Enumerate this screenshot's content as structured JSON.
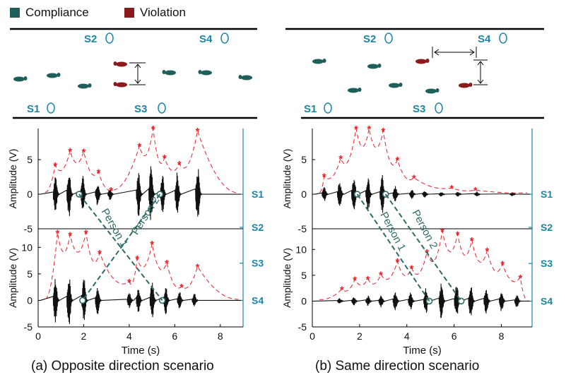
{
  "legend": {
    "compliance": {
      "label": "Compliance",
      "color": "#1f5f5b"
    },
    "violation": {
      "label": "Violation",
      "color": "#8b1a1a"
    }
  },
  "colors": {
    "sensor": "#1a86a6",
    "envelope": "#e8202a",
    "signal": "#111111",
    "track": "#2f6b66"
  },
  "scenarios": [
    {
      "id": "a",
      "caption": "(a) Opposite direction scenario",
      "sensors_top": [
        "S2",
        "S4"
      ],
      "sensors_bottom": [
        "S1",
        "S3"
      ],
      "person_labels": [
        "Person 1",
        "Person 2"
      ]
    },
    {
      "id": "b",
      "caption": "(b) Same direction scenario",
      "sensors_top": [
        "S2",
        "S4"
      ],
      "sensors_bottom": [
        "S1",
        "S3"
      ],
      "person_labels": [
        "Person 1",
        "Person 2"
      ]
    }
  ],
  "chart_data": [
    {
      "type": "line",
      "panel": "a-top",
      "ylabel": "Amplitude (V)",
      "ylim": [
        -5,
        9.5
      ],
      "xlim": [
        0,
        9
      ],
      "yticks": [
        -5,
        0,
        5
      ],
      "right_ticks": [
        "S1",
        "S2"
      ],
      "peaks": [
        {
          "x": 0.75,
          "y": 4.2
        },
        {
          "x": 1.4,
          "y": 6.3
        },
        {
          "x": 2.0,
          "y": 6.2
        },
        {
          "x": 2.65,
          "y": 3.2
        },
        {
          "x": 3.2,
          "y": 0.6
        },
        {
          "x": 4.45,
          "y": 7.0
        },
        {
          "x": 5.05,
          "y": 9.5
        },
        {
          "x": 5.55,
          "y": 5.3
        },
        {
          "x": 6.2,
          "y": 4.4
        },
        {
          "x": 7.0,
          "y": 9.2
        }
      ],
      "bursts": [
        {
          "x": 0.8,
          "a": 2.8
        },
        {
          "x": 1.4,
          "a": 3.5
        },
        {
          "x": 2.0,
          "a": 2.8
        },
        {
          "x": 2.65,
          "a": 1.7
        },
        {
          "x": 3.2,
          "a": 0.9
        },
        {
          "x": 4.45,
          "a": 3.3
        },
        {
          "x": 5.0,
          "a": 4.3
        },
        {
          "x": 5.5,
          "a": 3.0
        },
        {
          "x": 6.15,
          "a": 3.2
        },
        {
          "x": 7.05,
          "a": 4.4
        }
      ],
      "markers": [
        {
          "x": 1.8,
          "y": 0
        },
        {
          "x": 5.35,
          "y": 0
        }
      ]
    },
    {
      "type": "line",
      "panel": "a-bottom",
      "xlabel": "Time (s)",
      "ylabel": "Amplitude (V)",
      "ylim": [
        -5,
        13.5
      ],
      "xlim": [
        0,
        9
      ],
      "yticks": [
        -5,
        0,
        5,
        10
      ],
      "xticks": [
        0,
        2,
        4,
        6,
        8
      ],
      "right_ticks": [
        "S3",
        "S4"
      ],
      "peaks": [
        {
          "x": 0.85,
          "y": 12.8
        },
        {
          "x": 1.4,
          "y": 12.4
        },
        {
          "x": 2.1,
          "y": 12.8
        },
        {
          "x": 2.7,
          "y": 9.0
        },
        {
          "x": 4.0,
          "y": 3.5
        },
        {
          "x": 4.35,
          "y": 7.9
        },
        {
          "x": 5.0,
          "y": 10.7
        },
        {
          "x": 5.65,
          "y": 7.1
        },
        {
          "x": 6.3,
          "y": 2.6
        },
        {
          "x": 7.0,
          "y": 6.4
        }
      ],
      "bursts": [
        {
          "x": 0.8,
          "a": 4.2
        },
        {
          "x": 1.4,
          "a": 5.0
        },
        {
          "x": 2.05,
          "a": 4.5
        },
        {
          "x": 2.65,
          "a": 2.8
        },
        {
          "x": 4.05,
          "a": 1.8
        },
        {
          "x": 4.45,
          "a": 2.7
        },
        {
          "x": 5.05,
          "a": 3.8
        },
        {
          "x": 5.65,
          "a": 2.8
        },
        {
          "x": 6.25,
          "a": 1.8
        },
        {
          "x": 6.9,
          "a": 1.5
        }
      ],
      "markers": [
        {
          "x": 1.95,
          "y": 0
        },
        {
          "x": 5.45,
          "y": 0
        }
      ]
    },
    {
      "type": "line",
      "panel": "b-top",
      "ylabel": "Amplitude (V)",
      "ylim": [
        -5,
        9.5
      ],
      "xlim": [
        0,
        9.3
      ],
      "yticks": [
        -5,
        0,
        5
      ],
      "right_ticks": [
        "S1",
        "S2"
      ],
      "peaks": [
        {
          "x": 0.5,
          "y": 2.6
        },
        {
          "x": 1.2,
          "y": 5.2
        },
        {
          "x": 1.85,
          "y": 9.5
        },
        {
          "x": 2.4,
          "y": 9.5
        },
        {
          "x": 3.0,
          "y": 9.2
        },
        {
          "x": 3.6,
          "y": 5.0
        },
        {
          "x": 4.3,
          "y": 2.4
        },
        {
          "x": 5.9,
          "y": 0.9
        },
        {
          "x": 6.9,
          "y": 0.6
        }
      ],
      "bursts": [
        {
          "x": 0.55,
          "a": 1.1
        },
        {
          "x": 1.2,
          "a": 2.0
        },
        {
          "x": 1.8,
          "a": 2.8
        },
        {
          "x": 2.4,
          "a": 2.6
        },
        {
          "x": 3.0,
          "a": 2.9
        },
        {
          "x": 3.55,
          "a": 1.3
        },
        {
          "x": 4.25,
          "a": 0.8
        },
        {
          "x": 4.8,
          "a": 0.5
        },
        {
          "x": 5.5,
          "a": 0.4
        },
        {
          "x": 6.2,
          "a": 0.4
        },
        {
          "x": 7.0,
          "a": 0.4
        },
        {
          "x": 8.5,
          "a": 0.3
        }
      ],
      "markers": [
        {
          "x": 1.9,
          "y": 0
        },
        {
          "x": 3.1,
          "y": 0
        }
      ]
    },
    {
      "type": "line",
      "panel": "b-bottom",
      "xlabel": "Time (s)",
      "ylabel": "Amplitude (V)",
      "ylim": [
        -5,
        14
      ],
      "xlim": [
        0,
        9.3
      ],
      "yticks": [
        -5,
        0,
        5,
        10
      ],
      "xticks": [
        0,
        2,
        4,
        6,
        8
      ],
      "right_ticks": [
        "S3",
        "S4"
      ],
      "peaks": [
        {
          "x": 1.25,
          "y": 2.3
        },
        {
          "x": 1.8,
          "y": 4.2
        },
        {
          "x": 2.35,
          "y": 4.3
        },
        {
          "x": 2.9,
          "y": 5.2
        },
        {
          "x": 3.6,
          "y": 7.7
        },
        {
          "x": 4.2,
          "y": 6.4
        },
        {
          "x": 4.85,
          "y": 9.5
        },
        {
          "x": 5.5,
          "y": 13.6
        },
        {
          "x": 6.15,
          "y": 13.0
        },
        {
          "x": 6.75,
          "y": 11.8
        },
        {
          "x": 7.4,
          "y": 9.8
        },
        {
          "x": 8.05,
          "y": 7.2
        },
        {
          "x": 8.8,
          "y": 4.6
        }
      ],
      "bursts": [
        {
          "x": 1.2,
          "a": 0.6
        },
        {
          "x": 1.8,
          "a": 0.9
        },
        {
          "x": 2.4,
          "a": 1.1
        },
        {
          "x": 2.95,
          "a": 1.3
        },
        {
          "x": 3.55,
          "a": 2.0
        },
        {
          "x": 4.2,
          "a": 1.8
        },
        {
          "x": 4.85,
          "a": 2.6
        },
        {
          "x": 5.5,
          "a": 3.6
        },
        {
          "x": 6.15,
          "a": 3.7
        },
        {
          "x": 6.75,
          "a": 3.3
        },
        {
          "x": 7.4,
          "a": 2.8
        },
        {
          "x": 8.05,
          "a": 2.1
        },
        {
          "x": 8.7,
          "a": 1.3
        }
      ],
      "markers": [
        {
          "x": 4.95,
          "y": 0
        },
        {
          "x": 6.3,
          "y": 0
        }
      ]
    }
  ]
}
